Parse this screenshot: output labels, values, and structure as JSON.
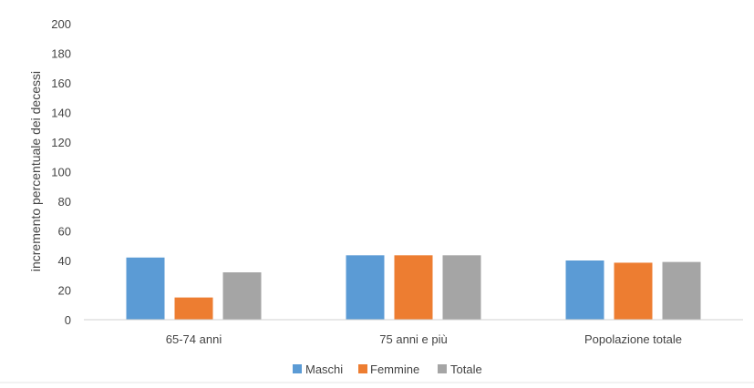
{
  "chart_data": {
    "type": "bar",
    "title": "",
    "xlabel": "",
    "ylabel": "incremento percentuale dei decessi",
    "ylim": [
      0,
      200
    ],
    "yticks": [
      0,
      20,
      40,
      60,
      80,
      100,
      120,
      140,
      160,
      180,
      200
    ],
    "grid": false,
    "legend_position": "bottom",
    "categories": [
      "65-74 anni",
      "75 anni e più",
      "Popolazione totale"
    ],
    "series": [
      {
        "name": "Maschi",
        "values": [
          42,
          43.5,
          40
        ],
        "color": "#5B9BD5"
      },
      {
        "name": "Femmine",
        "values": [
          15,
          43.5,
          38.5
        ],
        "color": "#ED7D31"
      },
      {
        "name": "Totale",
        "values": [
          32,
          43.5,
          39
        ],
        "color": "#A5A5A5"
      }
    ]
  }
}
